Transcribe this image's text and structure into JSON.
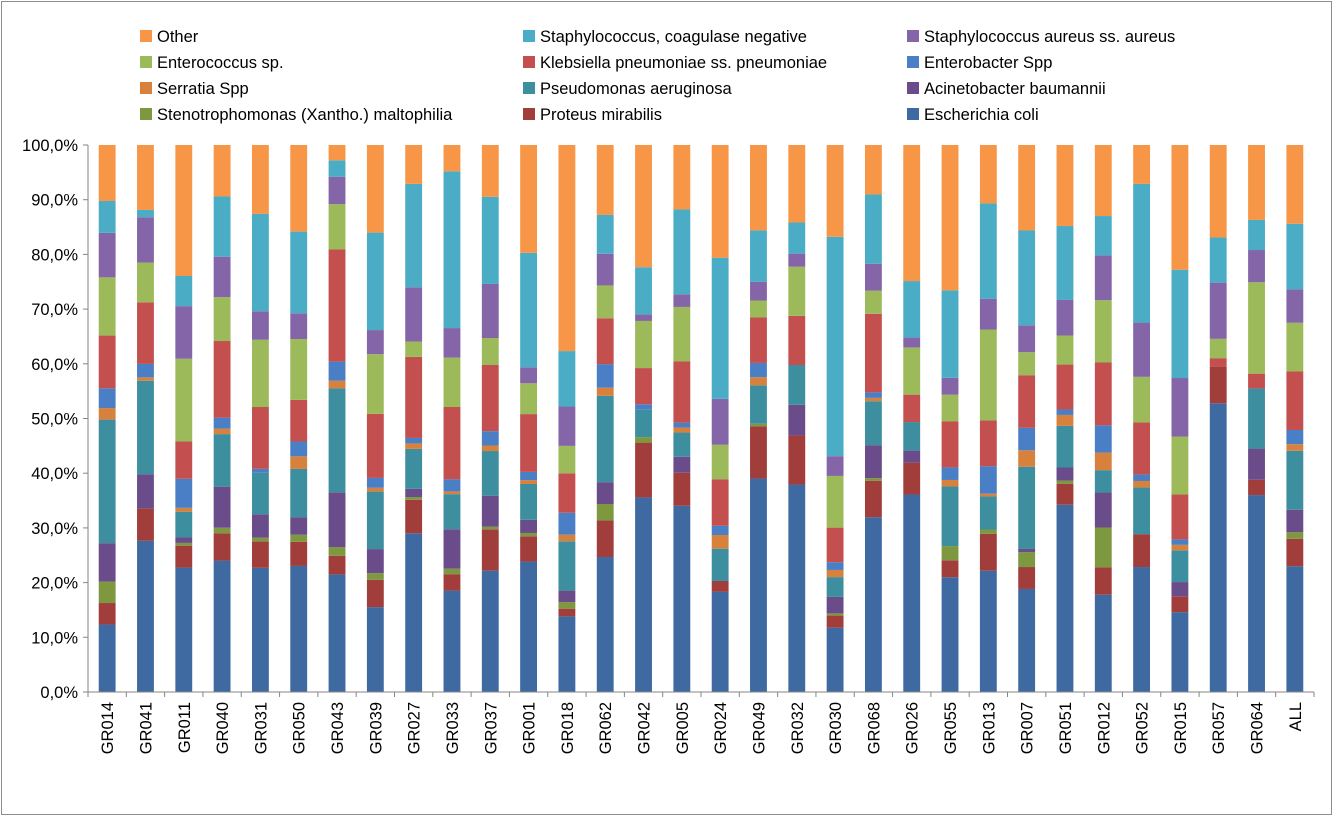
{
  "chart_data": {
    "type": "bar",
    "stacked": "percent",
    "title": "",
    "xlabel": "",
    "ylabel": "",
    "ylim": [
      0,
      100
    ],
    "grid": false,
    "legend_position": "top",
    "y_tick_labels": [
      "0,0%",
      "10,0%",
      "20,0%",
      "30,0%",
      "40,0%",
      "50,0%",
      "60,0%",
      "70,0%",
      "80,0%",
      "90,0%",
      "100,0%"
    ],
    "categories": [
      "GR014",
      "GR041",
      "GR011",
      "GR040",
      "GR031",
      "GR050",
      "GR043",
      "GR039",
      "GR027",
      "GR033",
      "GR037",
      "GR001",
      "GR018",
      "GR062",
      "GR042",
      "GR005",
      "GR024",
      "GR049",
      "GR032",
      "GR030",
      "GR068",
      "GR026",
      "GR055",
      "GR013",
      "GR007",
      "GR051",
      "GR012",
      "GR052",
      "GR015",
      "GR057",
      "GR064",
      "ALL"
    ],
    "series": [
      {
        "name": "Escherichia coli",
        "color": "#3e6aa1",
        "values": [
          12.3,
          27.0,
          22.7,
          24.0,
          22.7,
          23.0,
          21.5,
          15.5,
          29.0,
          18.5,
          22.0,
          23.7,
          13.8,
          24.7,
          35.5,
          33.8,
          18.3,
          39.0,
          38.0,
          11.7,
          31.8,
          36.0,
          21.0,
          22.0,
          18.8,
          34.2,
          17.8,
          22.8,
          14.6,
          49.3,
          36.0,
          23.0
        ]
      },
      {
        "name": "Proteus mirabilis",
        "color": "#a13e3c",
        "values": [
          3.9,
          5.8,
          4.0,
          5.0,
          4.8,
          4.4,
          3.4,
          5.0,
          6.1,
          3.0,
          7.5,
          4.6,
          1.4,
          6.7,
          10.0,
          6.0,
          2.0,
          9.5,
          9.0,
          2.2,
          6.6,
          5.8,
          3.1,
          6.7,
          4.0,
          3.8,
          5.0,
          6.0,
          2.9,
          6.2,
          2.8,
          5.0
        ]
      },
      {
        "name": "Stenotrophomonas (Xantho.) maltophilia",
        "color": "#7d983f",
        "values": [
          3.9,
          0.0,
          0.5,
          1.0,
          0.7,
          1.3,
          1.6,
          1.2,
          0.5,
          1.0,
          0.5,
          0.6,
          1.2,
          3.0,
          1.0,
          0.0,
          0.0,
          0.5,
          0.0,
          0.4,
          0.5,
          0.0,
          2.6,
          0.8,
          2.7,
          0.6,
          7.3,
          0.0,
          0.0,
          0.0,
          0.0,
          1.2
        ]
      },
      {
        "name": "Acinetobacter baumannii",
        "color": "#6a4c8a",
        "values": [
          7.0,
          6.1,
          1.0,
          7.5,
          4.3,
          3.2,
          10.0,
          4.4,
          1.5,
          7.2,
          5.6,
          2.4,
          2.1,
          4.0,
          0.0,
          2.9,
          0.0,
          0.0,
          5.6,
          3.0,
          6.0,
          2.2,
          0.0,
          0.0,
          0.6,
          2.4,
          6.4,
          0.0,
          2.6,
          0.0,
          5.7,
          4.1
        ]
      },
      {
        "name": "Pseudomonas aeruginosa",
        "color": "#3d8e9f",
        "values": [
          22.5,
          16.7,
          4.7,
          9.6,
          7.6,
          8.8,
          19.0,
          10.5,
          7.3,
          6.4,
          8.1,
          6.5,
          9.0,
          15.8,
          5.0,
          4.4,
          5.9,
          7.0,
          7.3,
          3.6,
          8.0,
          5.2,
          10.9,
          6.0,
          15.0,
          7.6,
          4.1,
          8.5,
          5.8,
          0.0,
          11.0,
          10.8
        ]
      },
      {
        "name": "Serratia Spp",
        "color": "#d8813c",
        "values": [
          2.1,
          0.6,
          0.7,
          1.0,
          0.0,
          2.3,
          1.4,
          0.7,
          1.0,
          0.5,
          1.0,
          0.7,
          1.2,
          1.5,
          0.0,
          0.9,
          2.5,
          1.5,
          0.0,
          1.3,
          0.6,
          0.0,
          1.2,
          0.5,
          3.0,
          2.0,
          3.2,
          1.2,
          1.0,
          0.0,
          0.0,
          1.2
        ]
      },
      {
        "name": "Enterobacter Spp",
        "color": "#4a7fc5",
        "values": [
          3.6,
          2.4,
          5.3,
          2.0,
          0.7,
          2.7,
          3.5,
          1.8,
          1.0,
          2.2,
          2.6,
          1.5,
          4.0,
          4.3,
          1.0,
          0.9,
          1.7,
          2.6,
          0.0,
          1.4,
          1.0,
          0.0,
          2.3,
          5.0,
          4.1,
          1.0,
          5.0,
          1.2,
          1.0,
          0.0,
          0.0,
          2.6
        ]
      },
      {
        "name": "Klebsiella pneumoniae ss. pneumoniae",
        "color": "#c34f4f",
        "values": [
          9.6,
          11.0,
          6.8,
          14.0,
          11.3,
          7.6,
          20.5,
          11.7,
          14.8,
          13.2,
          12.0,
          10.5,
          7.2,
          8.4,
          6.6,
          11.1,
          8.5,
          8.3,
          9.0,
          6.3,
          14.3,
          5.0,
          8.4,
          8.3,
          9.6,
          8.2,
          11.5,
          9.5,
          8.2,
          1.5,
          2.7,
          10.7
        ]
      },
      {
        "name": "Enterococcus sp.",
        "color": "#9dba5b",
        "values": [
          10.6,
          7.1,
          15.1,
          8.0,
          12.3,
          11.1,
          8.3,
          10.9,
          2.8,
          9.0,
          4.9,
          5.6,
          5.0,
          6.0,
          8.6,
          9.9,
          6.3,
          3.1,
          9.0,
          9.4,
          4.2,
          8.6,
          4.9,
          16.5,
          4.2,
          5.3,
          11.4,
          8.3,
          10.6,
          3.3,
          16.7,
          8.9
        ]
      },
      {
        "name": "Staphylococcus aureus ss. aureus",
        "color": "#8466a8",
        "values": [
          8.1,
          8.1,
          9.6,
          7.4,
          5.2,
          4.7,
          5.0,
          4.4,
          9.9,
          5.4,
          9.8,
          2.9,
          7.2,
          5.8,
          1.2,
          2.3,
          8.4,
          3.4,
          2.4,
          3.6,
          4.9,
          1.8,
          3.1,
          5.6,
          4.9,
          6.5,
          8.2,
          9.9,
          10.7,
          9.6,
          5.9,
          6.1
        ]
      },
      {
        "name": "Staphylococcus, coagulase negative",
        "color": "#4bacc6",
        "values": [
          5.8,
          1.3,
          5.5,
          11.0,
          17.8,
          14.9,
          3.0,
          17.8,
          18.9,
          28.6,
          15.8,
          20.8,
          10.1,
          7.1,
          8.6,
          15.4,
          25.8,
          9.4,
          5.7,
          39.9,
          12.6,
          10.3,
          16.0,
          17.3,
          17.3,
          13.5,
          7.2,
          25.3,
          19.8,
          7.7,
          5.5,
          12.0
        ]
      },
      {
        "name": "Other",
        "color": "#f79646",
        "values": [
          10.2,
          11.6,
          23.9,
          9.4,
          12.6,
          15.8,
          2.8,
          16.0,
          7.1,
          4.8,
          9.4,
          19.6,
          37.6,
          12.8,
          22.3,
          11.7,
          20.6,
          15.6,
          14.2,
          16.7,
          9.0,
          24.8,
          26.6,
          10.6,
          15.6,
          14.8,
          13.0,
          7.1,
          22.8,
          15.8,
          13.7,
          14.4
        ]
      }
    ]
  }
}
